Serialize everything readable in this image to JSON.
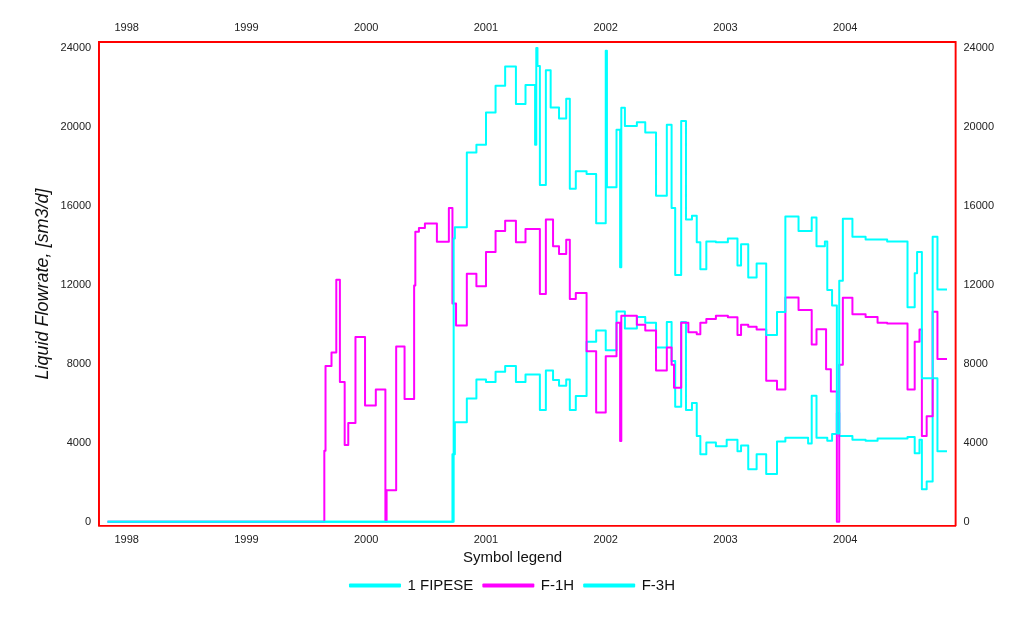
{
  "chart_data": {
    "type": "step",
    "ylabel": "Liquid Flowrate, [sm3/d]",
    "legend_title": "Symbol legend",
    "legend": "bottom",
    "grid": false,
    "line_style": "solid",
    "marker": "none",
    "xlim": [
      1997.77,
      2004.92
    ],
    "xticks": [
      {
        "value": 1998,
        "label": "1998"
      },
      {
        "value": 1999,
        "label": "1999"
      },
      {
        "value": 2000,
        "label": "2000"
      },
      {
        "value": 2001,
        "label": "2001"
      },
      {
        "value": 2002,
        "label": "2002"
      },
      {
        "value": 2003,
        "label": "2003"
      },
      {
        "value": 2004,
        "label": "2004"
      }
    ],
    "x2lim": [
      1997.77,
      2004.92
    ],
    "x2ticks": [
      {
        "value": 1998,
        "label": "1998"
      },
      {
        "value": 1999,
        "label": "1999"
      },
      {
        "value": 2000,
        "label": "2000"
      },
      {
        "value": 2001,
        "label": "2001"
      },
      {
        "value": 2002,
        "label": "2002"
      },
      {
        "value": 2003,
        "label": "2003"
      },
      {
        "value": 2004,
        "label": "2004"
      }
    ],
    "ylim": [
      -200,
      24300
    ],
    "yticks": [
      0,
      4000,
      8000,
      12000,
      16000,
      20000,
      24000
    ],
    "y2lim": [
      -200,
      24300
    ],
    "y2ticks": [
      0,
      4000,
      8000,
      12000,
      16000,
      20000,
      24000
    ],
    "series": [
      {
        "name": "1 FIPESE",
        "color": "#00ffff",
        "x": [
          1997.84,
          2000.73,
          2000.74,
          2000.84,
          2000.92,
          2001.0,
          2001.08,
          2001.16,
          2001.25,
          2001.33,
          2001.41,
          2001.42,
          2001.43,
          2001.45,
          2001.5,
          2001.54,
          2001.56,
          2001.61,
          2001.67,
          2001.7,
          2001.75,
          2001.84,
          2001.92,
          2002.0,
          2002.01,
          2002.09,
          2002.12,
          2002.13,
          2002.16,
          2002.26,
          2002.33,
          2002.42,
          2002.51,
          2002.55,
          2002.58,
          2002.63,
          2002.67,
          2002.72,
          2002.76,
          2002.79,
          2002.84,
          2002.92,
          2003.02,
          2003.1,
          2003.13,
          2003.19,
          2003.26,
          2003.34,
          2003.43,
          2003.5,
          2003.61,
          2003.72,
          2003.76,
          2003.83,
          2003.85,
          2003.89,
          2003.93,
          2003.95,
          2003.98,
          2004.06,
          2004.17,
          2004.35,
          2004.52,
          2004.58,
          2004.6,
          2004.64,
          2004.73,
          2004.77,
          2004.85
        ],
        "values": [
          0,
          14350,
          14930,
          18710,
          19100,
          20740,
          22100,
          23070,
          21170,
          22130,
          19100,
          24000,
          23100,
          17060,
          22880,
          20990,
          20990,
          20440,
          21440,
          16880,
          17760,
          17620,
          15130,
          23870,
          16950,
          19870,
          12900,
          20980,
          20060,
          20250,
          19720,
          16520,
          20120,
          15900,
          12510,
          20310,
          15320,
          15510,
          14160,
          12800,
          14200,
          14160,
          14350,
          12990,
          14060,
          12380,
          13090,
          9470,
          10630,
          15470,
          14740,
          15420,
          13960,
          14200,
          11740,
          10960,
          4470,
          12220,
          15350,
          14450,
          14300,
          14200,
          10870,
          12590,
          13670,
          7280,
          14450,
          11770,
          11770
        ]
      },
      {
        "name": "F-1H",
        "color": "#ff00ff",
        "x": [
          1997.84,
          1999.65,
          1999.66,
          1999.71,
          1999.75,
          1999.78,
          1999.82,
          1999.85,
          1999.91,
          1999.99,
          2000.08,
          2000.16,
          2000.17,
          2000.25,
          2000.32,
          2000.4,
          2000.41,
          2000.44,
          2000.49,
          2000.59,
          2000.69,
          2000.72,
          2000.75,
          2000.84,
          2000.92,
          2001.0,
          2001.08,
          2001.16,
          2001.25,
          2001.33,
          2001.45,
          2001.5,
          2001.56,
          2001.61,
          2001.67,
          2001.7,
          2001.75,
          2001.84,
          2001.92,
          2002.0,
          2002.09,
          2002.12,
          2002.13,
          2002.26,
          2002.33,
          2002.42,
          2002.51,
          2002.55,
          2002.57,
          2002.63,
          2002.69,
          2002.76,
          2002.79,
          2002.84,
          2002.92,
          2003.02,
          2003.1,
          2003.13,
          2003.19,
          2003.26,
          2003.34,
          2003.43,
          2003.5,
          2003.61,
          2003.72,
          2003.76,
          2003.84,
          2003.88,
          2003.93,
          2003.95,
          2003.98,
          2004.06,
          2004.17,
          2004.27,
          2004.35,
          2004.52,
          2004.58,
          2004.62,
          2004.64,
          2004.68,
          2004.73,
          2004.77,
          2004.85
        ],
        "values": [
          0,
          3600,
          7900,
          8580,
          12260,
          7080,
          3890,
          5010,
          9360,
          5890,
          6700,
          0,
          1600,
          8890,
          6220,
          11970,
          14700,
          14890,
          15120,
          14190,
          15900,
          11060,
          9950,
          12570,
          11930,
          13670,
          14740,
          15260,
          14160,
          14840,
          11540,
          15320,
          13960,
          13570,
          14290,
          11290,
          11600,
          8640,
          5540,
          8390,
          10090,
          4090,
          10440,
          9990,
          9700,
          7670,
          8830,
          7960,
          6800,
          10090,
          9600,
          9510,
          10090,
          10280,
          10440,
          10360,
          9470,
          9990,
          9890,
          9740,
          7150,
          6700,
          11370,
          10730,
          8990,
          9760,
          7730,
          6610,
          0,
          7960,
          11350,
          10520,
          10380,
          10090,
          10050,
          6700,
          9120,
          9740,
          4350,
          5350,
          10640,
          8250,
          8250
        ]
      },
      {
        "name": "F-3H",
        "color": "#00ffff",
        "x": [
          1997.84,
          2000.72,
          2000.74,
          2000.84,
          2000.92,
          2001.0,
          2001.08,
          2001.16,
          2001.25,
          2001.33,
          2001.45,
          2001.5,
          2001.56,
          2001.61,
          2001.67,
          2001.7,
          2001.75,
          2001.84,
          2001.92,
          2002.0,
          2002.09,
          2002.16,
          2002.26,
          2002.33,
          2002.42,
          2002.51,
          2002.55,
          2002.58,
          2002.63,
          2002.67,
          2002.72,
          2002.76,
          2002.79,
          2002.84,
          2002.92,
          2003.01,
          2003.1,
          2003.13,
          2003.19,
          2003.26,
          2003.34,
          2003.43,
          2003.5,
          2003.69,
          2003.72,
          2003.76,
          2003.85,
          2003.89,
          2003.93,
          2003.95,
          2004.06,
          2004.17,
          2004.27,
          2004.52,
          2004.58,
          2004.62,
          2004.64,
          2004.68,
          2004.73,
          2004.77,
          2004.85
        ],
        "values": [
          0,
          3430,
          5050,
          6250,
          7210,
          7080,
          7600,
          7890,
          7080,
          7470,
          5670,
          7670,
          7190,
          6900,
          7210,
          5670,
          6370,
          9120,
          9700,
          8700,
          10660,
          9800,
          10380,
          10090,
          8830,
          10130,
          8150,
          5830,
          10130,
          5670,
          6020,
          4350,
          3430,
          4020,
          3830,
          4160,
          3580,
          3870,
          2670,
          3430,
          2420,
          4070,
          4260,
          3970,
          6390,
          4260,
          4110,
          4450,
          5520,
          4350,
          4160,
          4110,
          4220,
          4300,
          3470,
          4160,
          1650,
          2040,
          7270,
          3580,
          3580
        ]
      }
    ]
  }
}
